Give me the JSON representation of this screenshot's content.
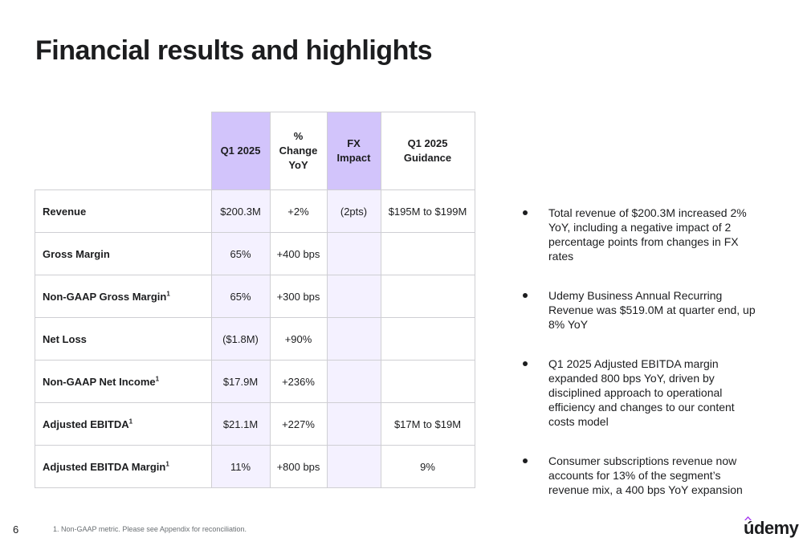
{
  "title": "Financial results and highlights",
  "table": {
    "headers": [
      "",
      "Q1 2025",
      "% Change YoY",
      "FX Impact",
      "Q1 2025 Guidance"
    ],
    "header_lines": {
      "q1": [
        "Q1 2025"
      ],
      "change": [
        "%",
        "Change",
        "YoY"
      ],
      "fx": [
        "FX",
        "Impact"
      ],
      "guidance": [
        "Q1 2025 Guidance"
      ]
    },
    "rows": [
      {
        "label": "Revenue",
        "footnote": "",
        "q1": "$200.3M",
        "change": "+2%",
        "fx": "(2pts)",
        "guidance": "$195M to $199M"
      },
      {
        "label": "Gross Margin",
        "footnote": "",
        "q1": "65%",
        "change": "+400 bps",
        "fx": "",
        "guidance": ""
      },
      {
        "label": "Non-GAAP Gross Margin",
        "footnote": "1",
        "q1": "65%",
        "change": "+300 bps",
        "fx": "",
        "guidance": ""
      },
      {
        "label": "Net Loss",
        "footnote": "",
        "q1": "($1.8M)",
        "change": "+90%",
        "fx": "",
        "guidance": ""
      },
      {
        "label": "Non-GAAP Net Income",
        "footnote": "1",
        "q1": "$17.9M",
        "change": "+236%",
        "fx": "",
        "guidance": ""
      },
      {
        "label": "Adjusted EBITDA",
        "footnote": "1",
        "q1": "$21.1M",
        "change": "+227%",
        "fx": "",
        "guidance": "$17M to $19M"
      },
      {
        "label": "Adjusted EBITDA Margin",
        "footnote": "1",
        "q1": "11%",
        "change": "+800 bps",
        "fx": "",
        "guidance": "9%"
      }
    ]
  },
  "bullets": [
    "Total revenue of $200.3M increased 2% YoY, including a negative impact of 2 percentage points from changes in FX rates",
    "Udemy Business Annual Recurring Revenue was $519.0M at quarter end, up 8% YoY",
    "Q1 2025 Adjusted EBITDA margin expanded 800 bps YoY, driven by disciplined approach to operational efficiency and changes to our content costs model",
    "Consumer subscriptions revenue now accounts for 13% of the segment’s revenue mix, a 400 bps YoY expansion"
  ],
  "footer": {
    "page_number": "6",
    "footnote": "1.  Non-GAAP metric. Please see Appendix for reconciliation.",
    "logo_text": "údemy"
  },
  "colors": {
    "highlight_header": "#d2c4fb",
    "highlight_cell": "#f4f1ff",
    "logo_accent": "#a435f0"
  }
}
